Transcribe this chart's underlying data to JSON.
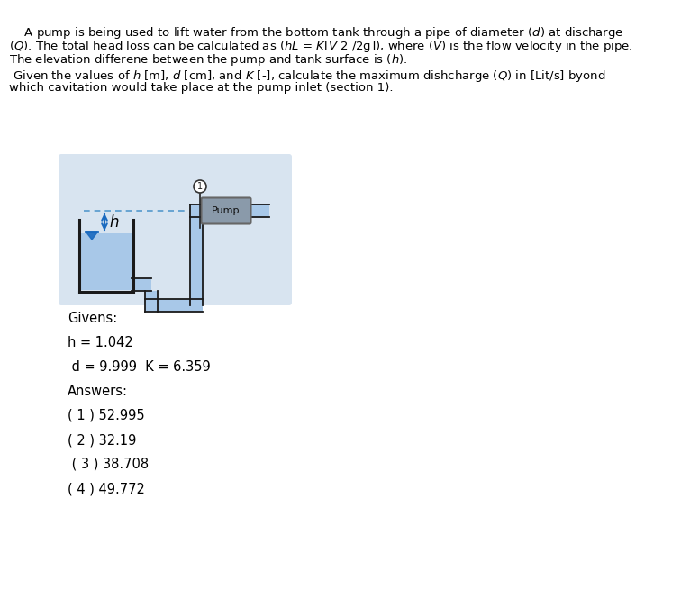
{
  "bg_color": "#ffffff",
  "diagram_bg": "#d8e4f0",
  "tank_fill": "#a8c8e8",
  "pipe_fill": "#a8c8e8",
  "tank_border": "#1a1a1a",
  "pipe_border": "#1a1a1a",
  "pump_fill": "#8a9aaa",
  "pump_border": "#666666",
  "arrow_color": "#1a6abf",
  "dashed_color": "#5599cc",
  "text_color": "#000000",
  "givens_label": "Givens:",
  "h_label": "h = 1.042",
  "dk_label": " d = 9.999  K = 6.359",
  "answers_label": "Answers:",
  "ans1": "( 1 ) 52.995",
  "ans2": "( 2 ) 32.19",
  "ans3": " ( 3 ) 38.708",
  "ans4": "( 4 ) 49.772",
  "font_size_body": 9.5,
  "font_size_labels": 10.5
}
